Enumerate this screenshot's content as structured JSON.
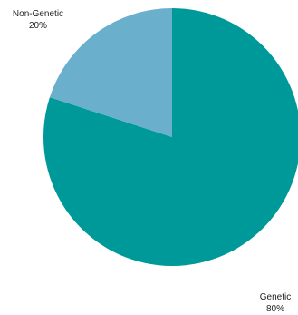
{
  "chart_data": {
    "type": "pie",
    "slices": [
      {
        "label": "Genetic",
        "value": 80,
        "percent_label": "80%",
        "color": "#009999"
      },
      {
        "label": "Non-Genetic",
        "value": 20,
        "percent_label": "20%",
        "color": "#6AAFCC"
      }
    ],
    "start_angle": "12 o'clock",
    "direction": "clockwise"
  }
}
